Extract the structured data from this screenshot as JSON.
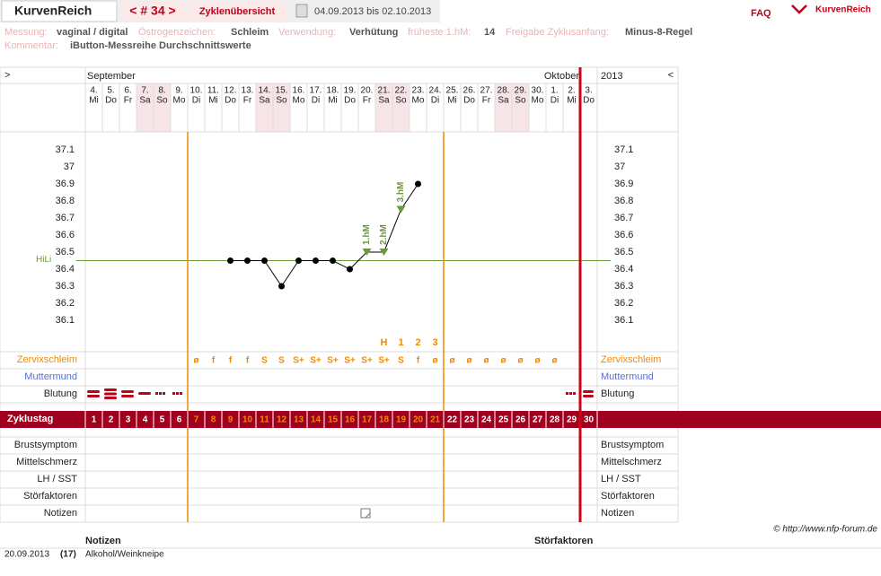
{
  "header": {
    "brand": "KurvenReich",
    "nav": "< # 34 >",
    "overview": "Zyklenübersicht",
    "range": "04.09.2013 bis 02.10.2013",
    "faq": "FAQ",
    "logo": "KurvenReich"
  },
  "info": [
    {
      "label": "Messung:",
      "value": "vaginal / digital"
    },
    {
      "label": "Östrogenzeichen:",
      "value": "Schleim"
    },
    {
      "label": "Verwendung:",
      "value": "Verhütung"
    },
    {
      "label": "früheste 1.hM:",
      "value": "14"
    },
    {
      "label": "Freigabe Zyklusanfang:",
      "value": "Minus-8-Regel"
    }
  ],
  "comment": {
    "label": "Kommentar:",
    "value": "iButton-Messreihe Durchschnittswerte"
  },
  "chart": {
    "nav_left": ">",
    "nav_right": "<",
    "month_start": "September",
    "month_end": "Oktober",
    "year": "2013",
    "days": [
      "4.",
      "5.",
      "6.",
      "7.",
      "8.",
      "9.",
      "10.",
      "11.",
      "12.",
      "13.",
      "14.",
      "15.",
      "16.",
      "17.",
      "18.",
      "19.",
      "20.",
      "21.",
      "22.",
      "23.",
      "24.",
      "25.",
      "26.",
      "27.",
      "28.",
      "29.",
      "30.",
      "1.",
      "2.",
      "3."
    ],
    "weekdays": [
      "Mi",
      "Do",
      "Fr",
      "Sa",
      "So",
      "Mo",
      "Di",
      "Mi",
      "Do",
      "Fr",
      "Sa",
      "So",
      "Mo",
      "Di",
      "Mi",
      "Do",
      "Fr",
      "Sa",
      "So",
      "Mo",
      "Di",
      "Mi",
      "Do",
      "Fr",
      "Sa",
      "So",
      "Mo",
      "Di",
      "Mi",
      "Do"
    ],
    "temperature": {
      "ylim": [
        35.9,
        37.2
      ],
      "yticks": [
        37.1,
        37,
        36.9,
        36.8,
        36.7,
        36.6,
        36.5,
        36.4,
        36.3,
        36.2,
        36.1
      ],
      "values": [
        null,
        null,
        null,
        null,
        null,
        null,
        null,
        null,
        36.45,
        36.45,
        36.45,
        36.3,
        36.45,
        36.45,
        36.45,
        36.4,
        36.5,
        36.5,
        36.75,
        36.9,
        null,
        null,
        null,
        null,
        null,
        null,
        null,
        null,
        null,
        null
      ],
      "high_markers": [
        null,
        null,
        null,
        null,
        null,
        null,
        null,
        null,
        null,
        null,
        null,
        null,
        null,
        null,
        null,
        null,
        "1.hM",
        "2.hM",
        "3.hM",
        null,
        null,
        null,
        null,
        null,
        null,
        null,
        null,
        null,
        null,
        null
      ],
      "hili": {
        "label": "HiLi",
        "value": 36.45
      }
    },
    "peak": [
      null,
      null,
      null,
      null,
      null,
      null,
      null,
      null,
      null,
      null,
      null,
      null,
      null,
      null,
      null,
      null,
      null,
      "H",
      "1",
      "2",
      "3",
      null,
      null,
      null,
      null,
      null,
      null,
      null,
      null,
      null
    ],
    "zervixschleim": {
      "label": "Zervixschleim",
      "values": [
        null,
        null,
        null,
        null,
        null,
        null,
        "ø",
        "f",
        "f",
        "f",
        "S",
        "S",
        "S+",
        "S+",
        "S+",
        "S+",
        "S+",
        "S+",
        "S",
        "f",
        "ø",
        "ø",
        "ø",
        "ø",
        "ø",
        "ø",
        "ø",
        "ø",
        null,
        null
      ]
    },
    "muttermund": {
      "label": "Muttermund"
    },
    "blutung": {
      "label": "Blutung"
    },
    "zyklustag": {
      "label": "Zyklustag",
      "values": [
        1,
        2,
        3,
        4,
        5,
        6,
        7,
        8,
        9,
        10,
        11,
        12,
        13,
        14,
        15,
        16,
        17,
        18,
        19,
        20,
        21,
        22,
        23,
        24,
        25,
        26,
        27,
        28,
        29,
        30
      ]
    },
    "lower_rows": [
      "Brustsymptom",
      "Mittelschmerz",
      "LH / SST",
      "Störfaktoren",
      "Notizen"
    ]
  },
  "footer": {
    "copyright": "© http://www.nfp-forum.de",
    "col_notes": "Notizen",
    "col_disturb": "Störfaktoren",
    "rows": [
      {
        "date": "20.09.2013",
        "day": "(17)",
        "note": "Alkohol/Weinkneipe"
      }
    ]
  }
}
